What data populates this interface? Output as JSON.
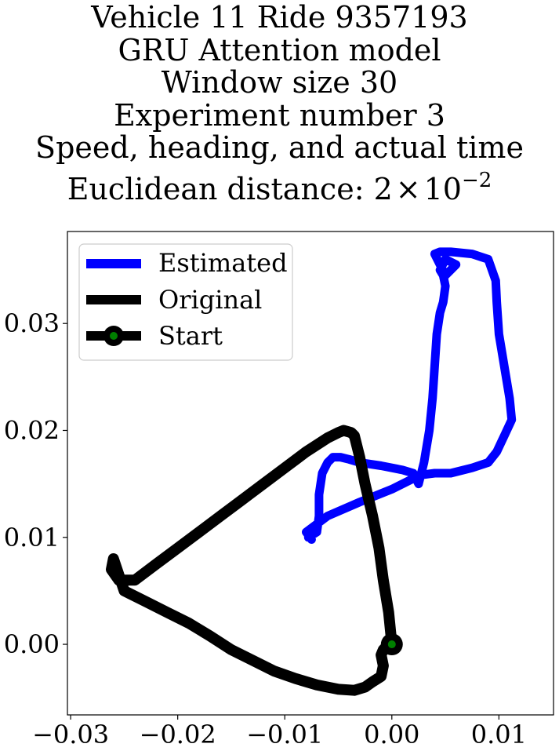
{
  "title": {
    "lines": [
      "Vehicle 11 Ride 9357193",
      "GRU Attention model",
      "Window size 30",
      "Experiment number 3",
      "Speed, heading, and actual time"
    ],
    "distance_prefix": "Euclidean distance: 2",
    "distance_times": "×",
    "distance_base": "10",
    "distance_exp": "−2"
  },
  "colors": {
    "estimated": "#0000ff",
    "original": "#000000",
    "start_marker": "#008000"
  },
  "chart_data": {
    "type": "line",
    "title": "Vehicle 11 Ride 9357193 GRU Attention model Window size 30 Experiment number 3 Speed, heading, and actual time Euclidean distance: 2×10^-2",
    "xlabel": "",
    "ylabel": "",
    "xlim": [
      -0.0303,
      0.0151
    ],
    "ylim": [
      -0.0066,
      0.0386
    ],
    "x_ticks": [
      -0.03,
      -0.02,
      -0.01,
      0.0,
      0.01
    ],
    "x_tick_labels": [
      "−0.03",
      "−0.02",
      "−0.01",
      "0.00",
      "0.01"
    ],
    "y_ticks": [
      0.0,
      0.01,
      0.02,
      0.03
    ],
    "y_tick_labels": [
      "0.00",
      "0.01",
      "0.02",
      "0.03"
    ],
    "grid": false,
    "legend_position": "top-left",
    "series": [
      {
        "name": "Estimated",
        "color": "#0000ff",
        "x": [
          -0.0078,
          -0.007,
          -0.0068,
          -0.0068,
          -0.0065,
          -0.006,
          -0.0055,
          -0.0048,
          -0.004,
          -0.003,
          -0.001,
          0.001,
          0.002,
          0.0025,
          0.003,
          0.0035,
          0.0038,
          0.004,
          0.0042,
          0.0045,
          0.0048,
          0.005,
          0.0048,
          0.0045,
          0.005,
          0.006,
          0.005,
          0.004,
          0.0045,
          0.0055,
          0.0075,
          0.009,
          0.0097,
          0.0098,
          0.01,
          0.0105,
          0.011,
          0.0112,
          0.0105,
          0.0098,
          0.009,
          0.0075,
          0.0055,
          0.004,
          0.0025,
          0.002,
          0.0,
          -0.003,
          -0.006,
          -0.008,
          -0.0075
        ],
        "y": [
          0.01,
          0.0105,
          0.012,
          0.014,
          0.016,
          0.017,
          0.0175,
          0.0175,
          0.0173,
          0.017,
          0.0167,
          0.0163,
          0.016,
          0.015,
          0.017,
          0.02,
          0.023,
          0.026,
          0.029,
          0.031,
          0.032,
          0.0335,
          0.0345,
          0.035,
          0.036,
          0.0355,
          0.0345,
          0.0365,
          0.0367,
          0.0367,
          0.0365,
          0.036,
          0.034,
          0.032,
          0.029,
          0.026,
          0.023,
          0.021,
          0.0195,
          0.018,
          0.017,
          0.0165,
          0.016,
          0.016,
          0.0158,
          0.0155,
          0.0145,
          0.0133,
          0.012,
          0.0105,
          0.0098
        ]
      },
      {
        "name": "Original",
        "color": "#000000",
        "x": [
          0.0,
          -0.0003,
          -0.0008,
          -0.0012,
          -0.0018,
          -0.0025,
          -0.003,
          -0.0035,
          -0.0038,
          -0.0045,
          -0.005,
          -0.006,
          -0.008,
          -0.01,
          -0.012,
          -0.014,
          -0.016,
          -0.018,
          -0.02,
          -0.022,
          -0.024,
          -0.0255,
          -0.0262,
          -0.026,
          -0.025,
          -0.023,
          -0.021,
          -0.019,
          -0.017,
          -0.015,
          -0.013,
          -0.011,
          -0.009,
          -0.007,
          -0.005,
          -0.0035,
          -0.0025,
          -0.0018,
          -0.001,
          -0.0008,
          -0.001,
          -0.0008,
          -0.0005,
          -0.0003,
          0.0
        ],
        "y": [
          0.0,
          0.003,
          0.006,
          0.009,
          0.012,
          0.015,
          0.0175,
          0.0195,
          0.0198,
          0.02,
          0.0198,
          0.0193,
          0.018,
          0.0165,
          0.015,
          0.0135,
          0.012,
          0.0105,
          0.009,
          0.0075,
          0.006,
          0.006,
          0.007,
          0.008,
          0.005,
          0.004,
          0.003,
          0.002,
          0.0008,
          -0.0005,
          -0.0015,
          -0.0025,
          -0.0032,
          -0.0038,
          -0.0042,
          -0.0043,
          -0.004,
          -0.0035,
          -0.003,
          -0.002,
          -0.001,
          -0.0005,
          -0.0002,
          0.0,
          0.0
        ]
      }
    ],
    "start_point": {
      "name": "Start",
      "x": 0.0,
      "y": 0.0
    }
  }
}
